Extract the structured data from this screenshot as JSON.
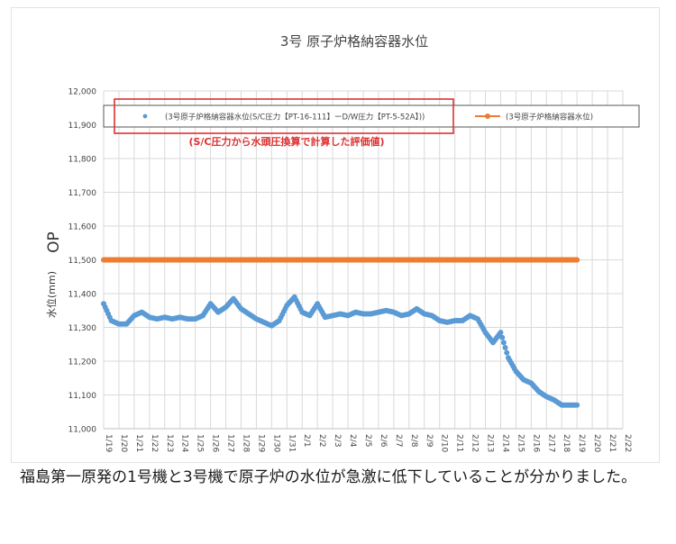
{
  "chart_data": {
    "type": "scatter",
    "title": "3号 原子炉格納容器水位",
    "ylabel": "OP",
    "ylabel_unit": "水位(mm)",
    "ylim": [
      11000,
      12000
    ],
    "y_ticks": [
      "11,000",
      "11,100",
      "11,200",
      "11,300",
      "11,400",
      "11,500",
      "11,600",
      "11,700",
      "11,800",
      "11,900",
      "12,000"
    ],
    "x_ticks": [
      "1/19",
      "1/20",
      "1/21",
      "1/22",
      "1/23",
      "1/24",
      "1/25",
      "1/26",
      "1/27",
      "1/28",
      "1/29",
      "1/30",
      "1/31",
      "2/1",
      "2/2",
      "2/3",
      "2/4",
      "2/5",
      "2/6",
      "2/7",
      "2/8",
      "2/9",
      "2/10",
      "2/11",
      "2/12",
      "2/13",
      "2/14",
      "2/15",
      "2/16",
      "2/17",
      "2/18",
      "2/19",
      "2/20",
      "2/21",
      "2/22"
    ],
    "grid": true,
    "legend_position": "top",
    "annotation": "(S/C圧力から水頭圧換算で計算した評価値)",
    "series": [
      {
        "name": "(3号原子炉格納容器水位(S/C圧力【PT-16-111】ーD/W圧力【PT-5-52A】))",
        "type": "scatter",
        "color": "#5b9bd5",
        "x": [
          0.0,
          0.5,
          1.0,
          1.5,
          2.0,
          2.5,
          3.0,
          3.5,
          4.0,
          4.5,
          5.0,
          5.5,
          6.0,
          6.5,
          7.0,
          7.5,
          8.0,
          8.5,
          9.0,
          9.5,
          10.0,
          10.5,
          11.0,
          11.5,
          12.0,
          12.5,
          13.0,
          13.5,
          14.0,
          14.5,
          15.0,
          15.5,
          16.0,
          16.5,
          17.0,
          17.5,
          18.0,
          18.5,
          19.0,
          19.5,
          20.0,
          20.5,
          21.0,
          21.5,
          22.0,
          22.5,
          23.0,
          23.5,
          24.0,
          24.5,
          25.0,
          25.5,
          26.0,
          26.5,
          27.0,
          27.5,
          28.0,
          28.5,
          29.0,
          29.5,
          30.0,
          30.5,
          31.0
        ],
        "values": [
          11370,
          11320,
          11310,
          11310,
          11335,
          11345,
          11330,
          11325,
          11330,
          11325,
          11330,
          11325,
          11325,
          11335,
          11370,
          11345,
          11360,
          11385,
          11355,
          11340,
          11325,
          11315,
          11305,
          11320,
          11365,
          11390,
          11345,
          11335,
          11370,
          11330,
          11335,
          11340,
          11335,
          11345,
          11340,
          11340,
          11345,
          11350,
          11345,
          11335,
          11340,
          11355,
          11340,
          11335,
          11320,
          11315,
          11320,
          11320,
          11335,
          11325,
          11285,
          11255,
          11285,
          11210,
          11170,
          11145,
          11135,
          11110,
          11095,
          11085,
          11070,
          11070,
          11070
        ]
      },
      {
        "name": "(3号原子炉格納容器水位)",
        "type": "line",
        "color": "#ed7d31",
        "x": [
          0,
          31
        ],
        "values": [
          11500,
          11500
        ]
      }
    ],
    "highlight_box_color": "#e03030",
    "annotation_color": "#e03030"
  },
  "caption": "福島第一原発の1号機と3号機で原子炉の水位が急激に低下していることが分かりました。"
}
